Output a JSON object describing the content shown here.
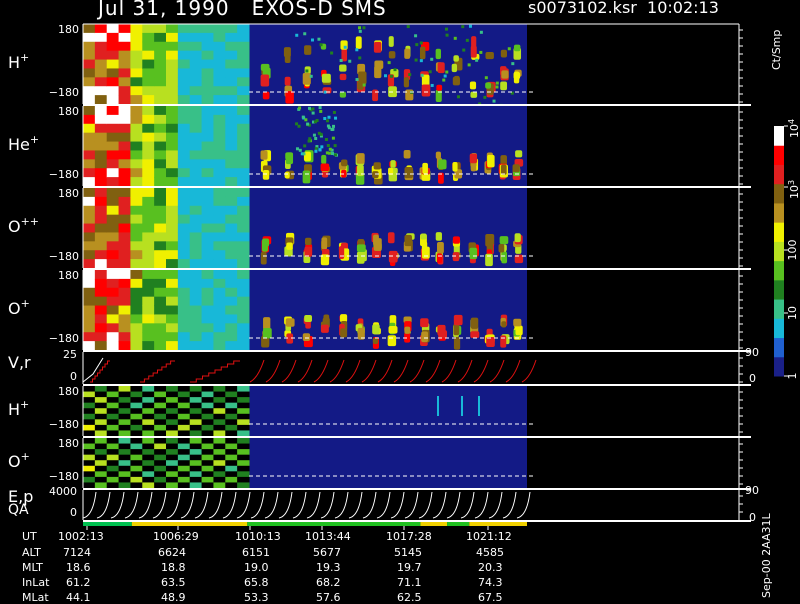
{
  "header": {
    "date_title": "Jul 31, 1990   EXOS-D SMS",
    "file_time": "s0073102.ksr  10:02:13"
  },
  "colorbar": {
    "unit": "Ct/Smp",
    "ticks": [
      {
        "label": "1",
        "value": 1
      },
      {
        "label": "10",
        "value": 10
      },
      {
        "label": "100",
        "value": 100
      },
      {
        "label": "10^3",
        "value": 1000
      },
      {
        "label": "10^4",
        "value": 10000
      }
    ],
    "colors": [
      "#1a2088",
      "#2060d0",
      "#18b8d8",
      "#38c088",
      "#208020",
      "#58c020",
      "#b8e020",
      "#f0f000",
      "#b89020",
      "#806010",
      "#e02020",
      "#ff0000",
      "#ffffff"
    ]
  },
  "stamp": "Sep-00  2AA31L",
  "ephemeris": {
    "labels": [
      "UT",
      "ALT",
      "MLT",
      "InLat",
      "MLat"
    ],
    "columns": [
      {
        "ut": "1002:13",
        "alt": "7124",
        "mlt": "18.6",
        "inlat": "61.2",
        "mlat": "44.1"
      },
      {
        "ut": "1006:29",
        "alt": "6624",
        "mlt": "18.8",
        "inlat": "63.5",
        "mlat": "48.9"
      },
      {
        "ut": "1010:13",
        "alt": "6151",
        "mlt": "19.0",
        "inlat": "65.8",
        "mlat": "53.3"
      },
      {
        "ut": "1013:44",
        "alt": "5677",
        "mlt": "19.3",
        "inlat": "68.2",
        "mlat": "57.6"
      },
      {
        "ut": "1017:28",
        "alt": "5145",
        "mlt": "19.7",
        "inlat": "71.1",
        "mlat": "62.5"
      },
      {
        "ut": "1021:12",
        "alt": "4585",
        "mlt": "20.3",
        "inlat": "74.3",
        "mlat": "67.5"
      }
    ]
  },
  "chart_data": {
    "type": "heatmap",
    "title": "Jul 31, 1990   EXOS-D SMS",
    "x_ticks": [
      "1002:13",
      "1006:29",
      "1010:13",
      "1013:44",
      "1017:28",
      "1021:12"
    ],
    "panels": [
      {
        "label": "H+",
        "ylabel_base": "H",
        "ylabel_sup": "+",
        "ytick_top": "180",
        "ytick_bottom": "−180",
        "ylim": [
          -180,
          180
        ],
        "kind": "spectrogram",
        "profile": "H"
      },
      {
        "label": "He+",
        "ylabel_base": "He",
        "ylabel_sup": "+",
        "ytick_top": "180",
        "ytick_bottom": "−180",
        "ylim": [
          -180,
          180
        ],
        "kind": "spectrogram",
        "profile": "He"
      },
      {
        "label": "O++",
        "ylabel_base": "O",
        "ylabel_sup": "++",
        "ytick_top": "180",
        "ytick_bottom": "−180",
        "ylim": [
          -180,
          180
        ],
        "kind": "spectrogram",
        "profile": "O2"
      },
      {
        "label": "O+",
        "ylabel_base": "O",
        "ylabel_sup": "+",
        "ytick_top": "180",
        "ytick_bottom": "−180",
        "ylim": [
          -180,
          180
        ],
        "kind": "spectrogram",
        "profile": "O"
      },
      {
        "label": "V,r",
        "ylabel_base": "V,r",
        "ylabel_sup": "",
        "ytick_top": "25",
        "ytick_bottom": "0",
        "ylim": [
          0,
          25
        ],
        "right_top": "90",
        "right_bottom": "0",
        "kind": "lines"
      },
      {
        "label": "H+",
        "ylabel_base": "H",
        "ylabel_sup": "+",
        "ytick_top": "180",
        "ytick_bottom": "−180",
        "ylim": [
          -180,
          180
        ],
        "kind": "spectrogram",
        "profile": "H2"
      },
      {
        "label": "O+",
        "ylabel_base": "O",
        "ylabel_sup": "+",
        "ytick_top": "180",
        "ytick_bottom": "−180",
        "ylim": [
          -180,
          180
        ],
        "kind": "spectrogram",
        "profile": "O3"
      },
      {
        "label": "E,p / QA",
        "ylabel_base": "E,p",
        "ylabel_sup": "",
        "ylabel_line2": "QA",
        "ytick_top": "4000",
        "ytick_bottom": "0",
        "ylim": [
          0,
          4000
        ],
        "right_top": "90",
        "right_bottom": "0",
        "kind": "ramps"
      }
    ],
    "qa_segments": [
      {
        "from": 0.0,
        "to": 0.11,
        "color": "#00c050"
      },
      {
        "from": 0.11,
        "to": 0.37,
        "color": "#f0d000"
      },
      {
        "from": 0.37,
        "to": 0.76,
        "color": "#20c020"
      },
      {
        "from": 0.76,
        "to": 0.82,
        "color": "#f0d000"
      },
      {
        "from": 0.82,
        "to": 0.87,
        "color": "#20c020"
      },
      {
        "from": 0.87,
        "to": 1.0,
        "color": "#f0d000"
      }
    ]
  }
}
